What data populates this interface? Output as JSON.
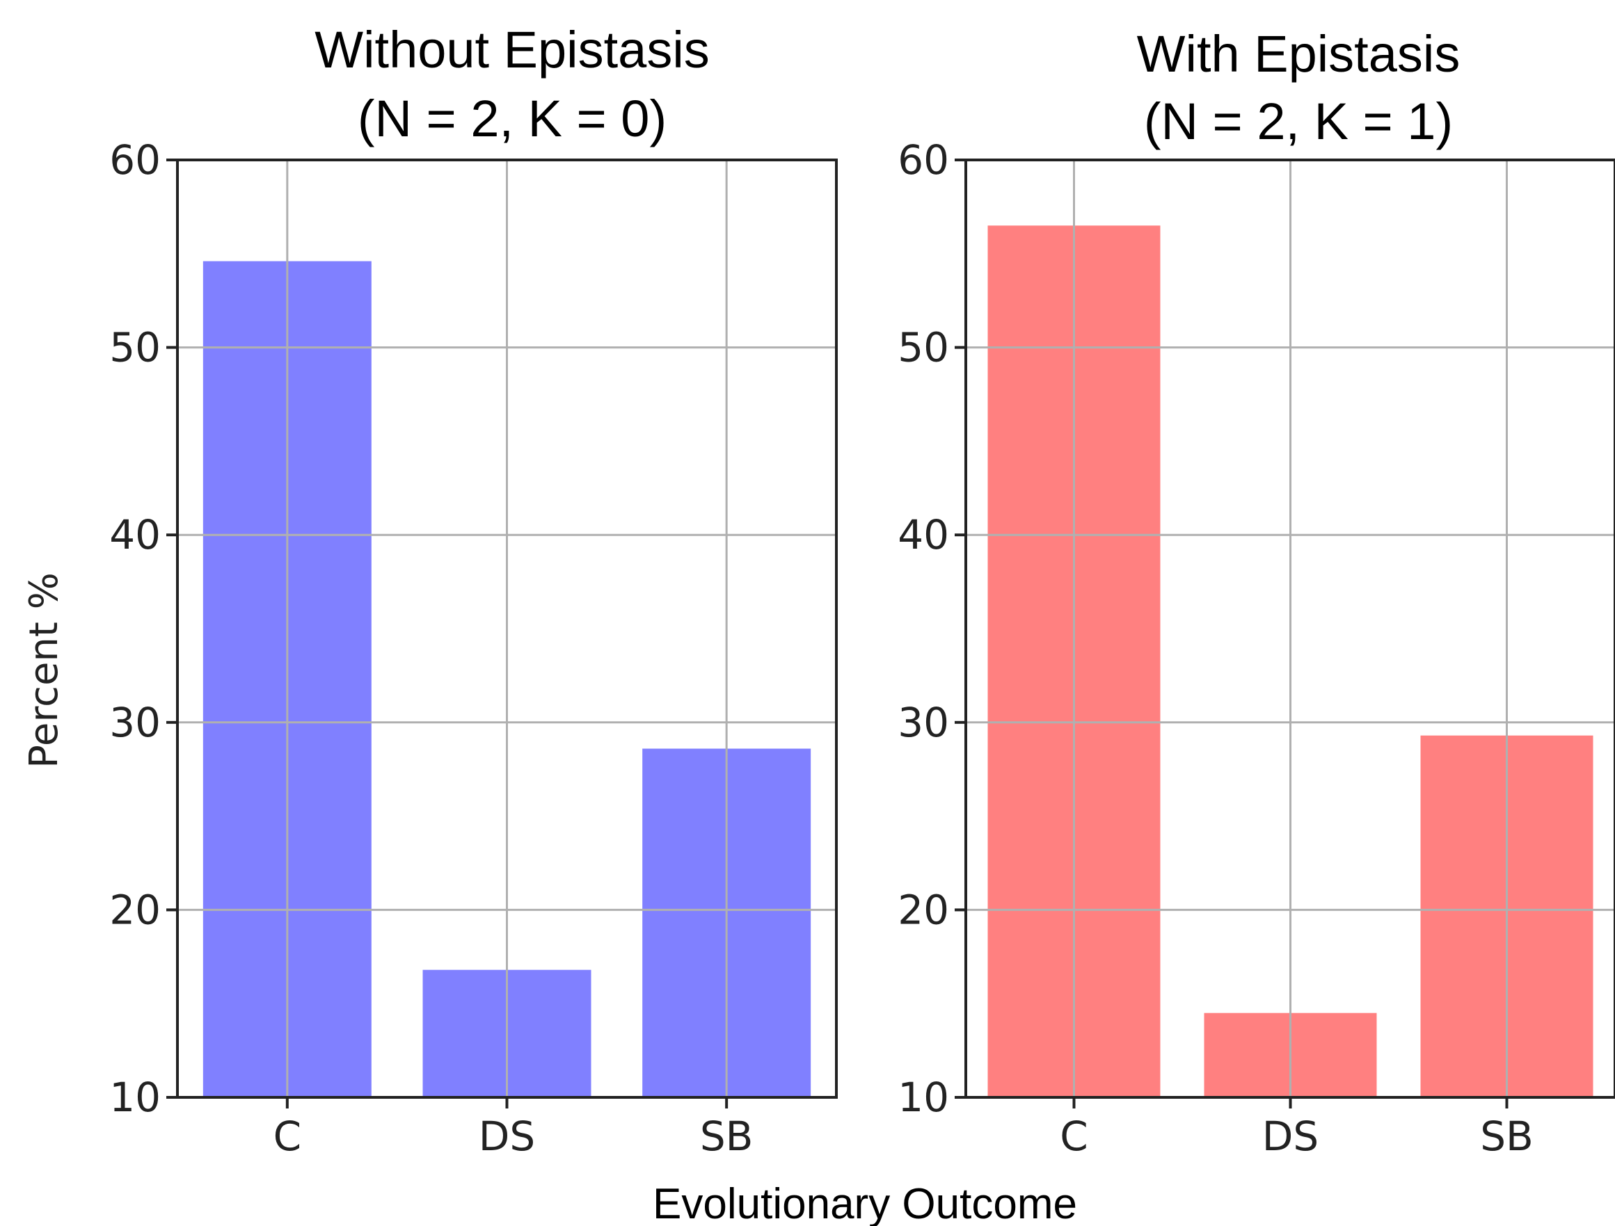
{
  "chart_data": [
    {
      "type": "bar",
      "title_lines": [
        "Without Epistasis",
        "(N = 2, K = 0)"
      ],
      "categories": [
        "C",
        "DS",
        "SB"
      ],
      "values": [
        54.6,
        16.8,
        28.6
      ],
      "ylim": [
        10,
        60
      ],
      "yticks": [
        "10",
        "20",
        "30",
        "40",
        "50",
        "60"
      ],
      "ylabel": "Percent %",
      "color": "#8080ff",
      "grid": true
    },
    {
      "type": "bar",
      "title_lines": [
        "With Epistasis",
        "(N = 2, K = 1)"
      ],
      "categories": [
        "C",
        "DS",
        "SB"
      ],
      "values": [
        56.5,
        14.5,
        29.3
      ],
      "ylim": [
        10,
        60
      ],
      "yticks": [
        "10",
        "20",
        "30",
        "40",
        "50",
        "60"
      ],
      "color": "#ff8080",
      "grid": true
    }
  ],
  "xlabel": "Evolutionary Outcome"
}
